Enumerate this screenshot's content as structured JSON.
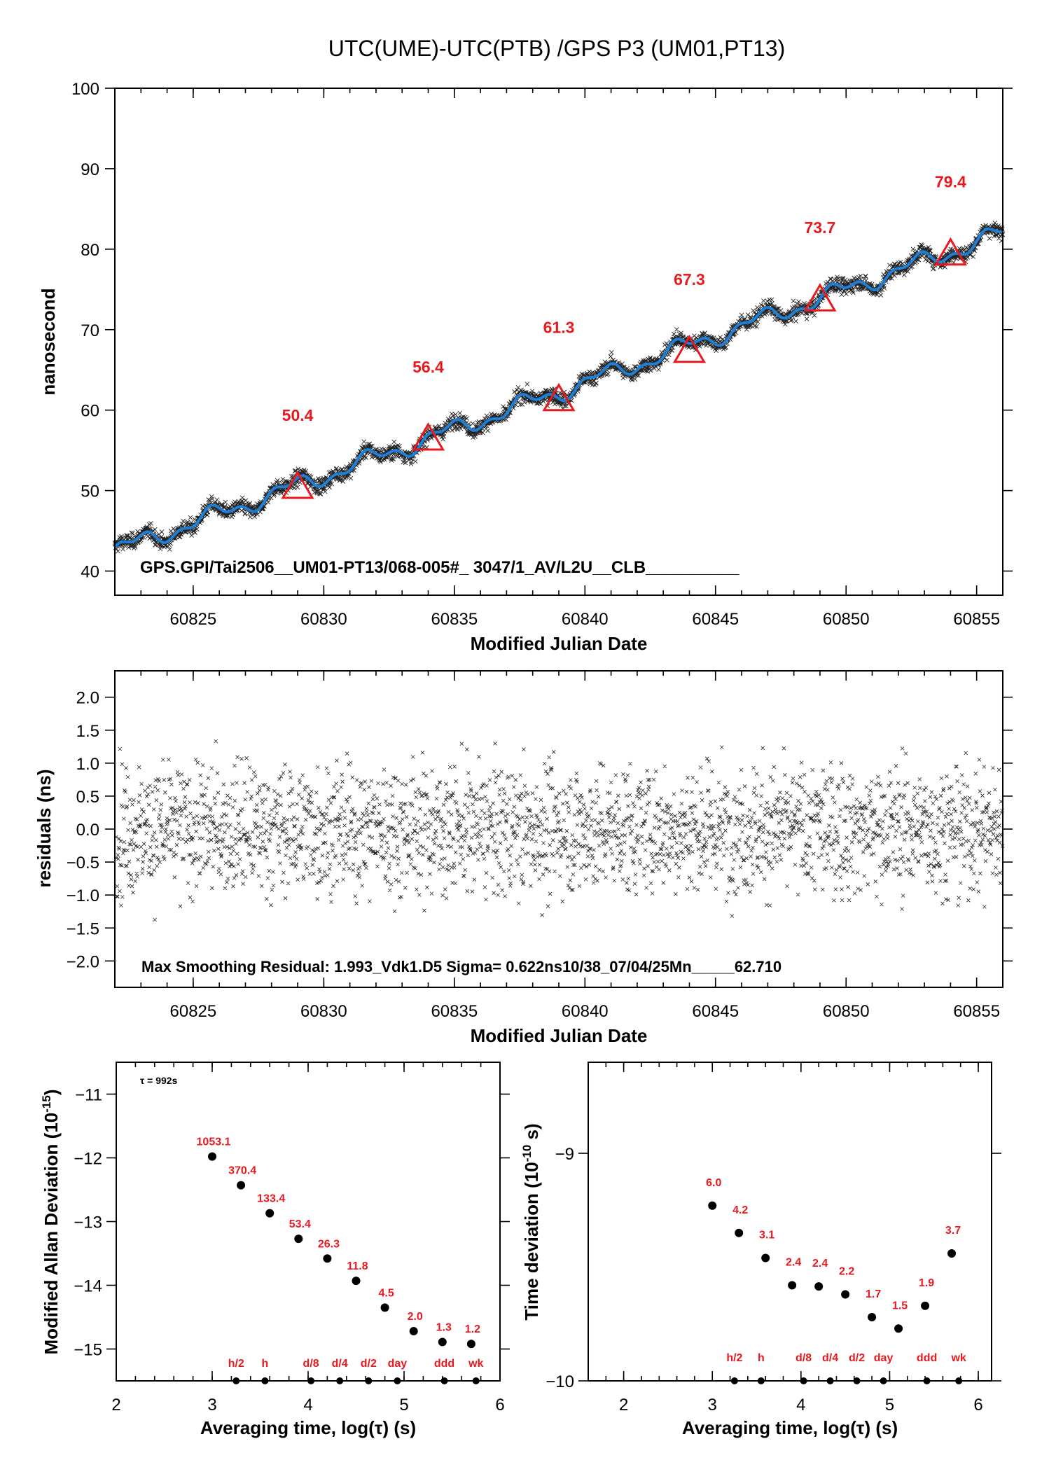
{
  "chart_data": [
    {
      "type": "scatter",
      "title": "UTC(UME)-UTC(PTB)  /GPS  P3  (UM01,PT13)",
      "xlabel": "Modified Julian Date",
      "ylabel": "nanosecond",
      "xlim": [
        60822,
        60856
      ],
      "ylim": [
        37,
        100
      ],
      "xticks": [
        60825,
        60830,
        60835,
        60840,
        60845,
        60850,
        60855
      ],
      "yticks": [
        40,
        50,
        60,
        70,
        80,
        90,
        100
      ],
      "note": "GPS.GPI/Tai2506__UM01-PT13/068-005#_  3047/1_AV/L2U__CLB__________",
      "series": [
        {
          "name": "",
          "style": "black x markers (raw data)",
          "trend": {
            "x": [
              60822,
              60856
            ],
            "y": [
              42.5,
              82.0
            ]
          }
        },
        {
          "name": "",
          "style": "blue smoothed line",
          "color": "#1e7fd6"
        },
        {
          "name": "",
          "style": "red triangles (daily values)",
          "color": "#e8191f",
          "x": [
            60829,
            60834,
            60839,
            60844,
            60849,
            60854
          ],
          "y": [
            50.4,
            56.4,
            61.3,
            67.3,
            73.7,
            79.4
          ],
          "labels": [
            "50.4",
            "56.4",
            "61.3",
            "67.3",
            "73.7",
            "79.4"
          ]
        }
      ]
    },
    {
      "type": "scatter",
      "xlabel": "Modified Julian Date",
      "ylabel": "residuals (ns)",
      "xlim": [
        60822,
        60856
      ],
      "ylim": [
        -2.4,
        2.4
      ],
      "xticks": [
        60825,
        60830,
        60835,
        60840,
        60845,
        60850,
        60855
      ],
      "yticks": [
        2.0,
        1.5,
        1.0,
        0.5,
        0.0,
        -0.5,
        -1.0,
        -1.5,
        -2.0
      ],
      "ytick_labels": [
        "2.0",
        "1.5",
        "1.0",
        "0.5",
        "0.0",
        "−0.5",
        "−1.0",
        "−1.5",
        "−2.0"
      ],
      "note": "Max Smoothing Residual: 1.993_Vdk1.D5  Sigma= 0.622ns10/38_07/04/25Mn_____62.710",
      "sigma": 0.622,
      "max_residual": 1.993
    },
    {
      "type": "scatter",
      "xlabel": "Averaging time, log(τ) (s)",
      "ylabel": "Modified Allan Deviation (10",
      "ylabel_sup": "-15",
      "ylabel_tail": ")",
      "xlim": [
        2,
        6
      ],
      "ylim": [
        -15.5,
        -10.5
      ],
      "xticks": [
        2,
        3,
        4,
        5,
        6
      ],
      "yticks": [
        -11,
        -12,
        -13,
        -14,
        -15
      ],
      "ytick_labels": [
        "−11",
        "−12",
        "−13",
        "−14",
        "−15"
      ],
      "tau_note": "τ = 992s",
      "x": [
        3.0,
        3.3,
        3.6,
        3.9,
        4.2,
        4.5,
        4.8,
        5.1,
        5.4,
        5.7
      ],
      "y": [
        -11.98,
        -12.43,
        -12.87,
        -13.27,
        -13.58,
        -13.93,
        -14.35,
        -14.72,
        -14.89,
        -14.92
      ],
      "labels": [
        "1053.1",
        "370.4",
        "133.4",
        "53.4",
        "26.3",
        "11.8",
        "4.5",
        "2.0",
        "1.3",
        "1.2"
      ],
      "markers": {
        "x": [
          3.25,
          3.55,
          4.03,
          4.33,
          4.63,
          4.93,
          5.42,
          5.75
        ],
        "labels": [
          "h/2",
          "h",
          "d/8",
          "d/4",
          "d/2",
          "day",
          "ddd",
          "wk"
        ]
      }
    },
    {
      "type": "scatter",
      "xlabel": "Averaging time, log(τ) (s)",
      "ylabel": "Time deviation (10",
      "ylabel_sup": "-10",
      "ylabel_tail": " s)",
      "xlim": [
        1.6,
        6.15
      ],
      "ylim": [
        -10,
        -8.6
      ],
      "xticks": [
        2,
        3,
        4,
        5,
        6
      ],
      "yticks": [
        -9,
        -10
      ],
      "ytick_labels": [
        "−9",
        "−10"
      ],
      "x": [
        3.0,
        3.3,
        3.6,
        3.9,
        4.2,
        4.5,
        4.8,
        5.1,
        5.4,
        5.7
      ],
      "y": [
        -9.23,
        -9.35,
        -9.46,
        -9.58,
        -9.585,
        -9.62,
        -9.72,
        -9.77,
        -9.67,
        -9.44
      ],
      "labels": [
        "6.0",
        "4.2",
        "3.1",
        "2.4",
        "2.4",
        "2.2",
        "1.7",
        "1.5",
        "1.9",
        "3.7"
      ],
      "markers": {
        "x": [
          3.25,
          3.55,
          4.03,
          4.33,
          4.63,
          4.93,
          5.42,
          5.78
        ],
        "labels": [
          "h/2",
          "h",
          "d/8",
          "d/4",
          "d/2",
          "day",
          "ddd",
          "wk"
        ]
      }
    }
  ]
}
